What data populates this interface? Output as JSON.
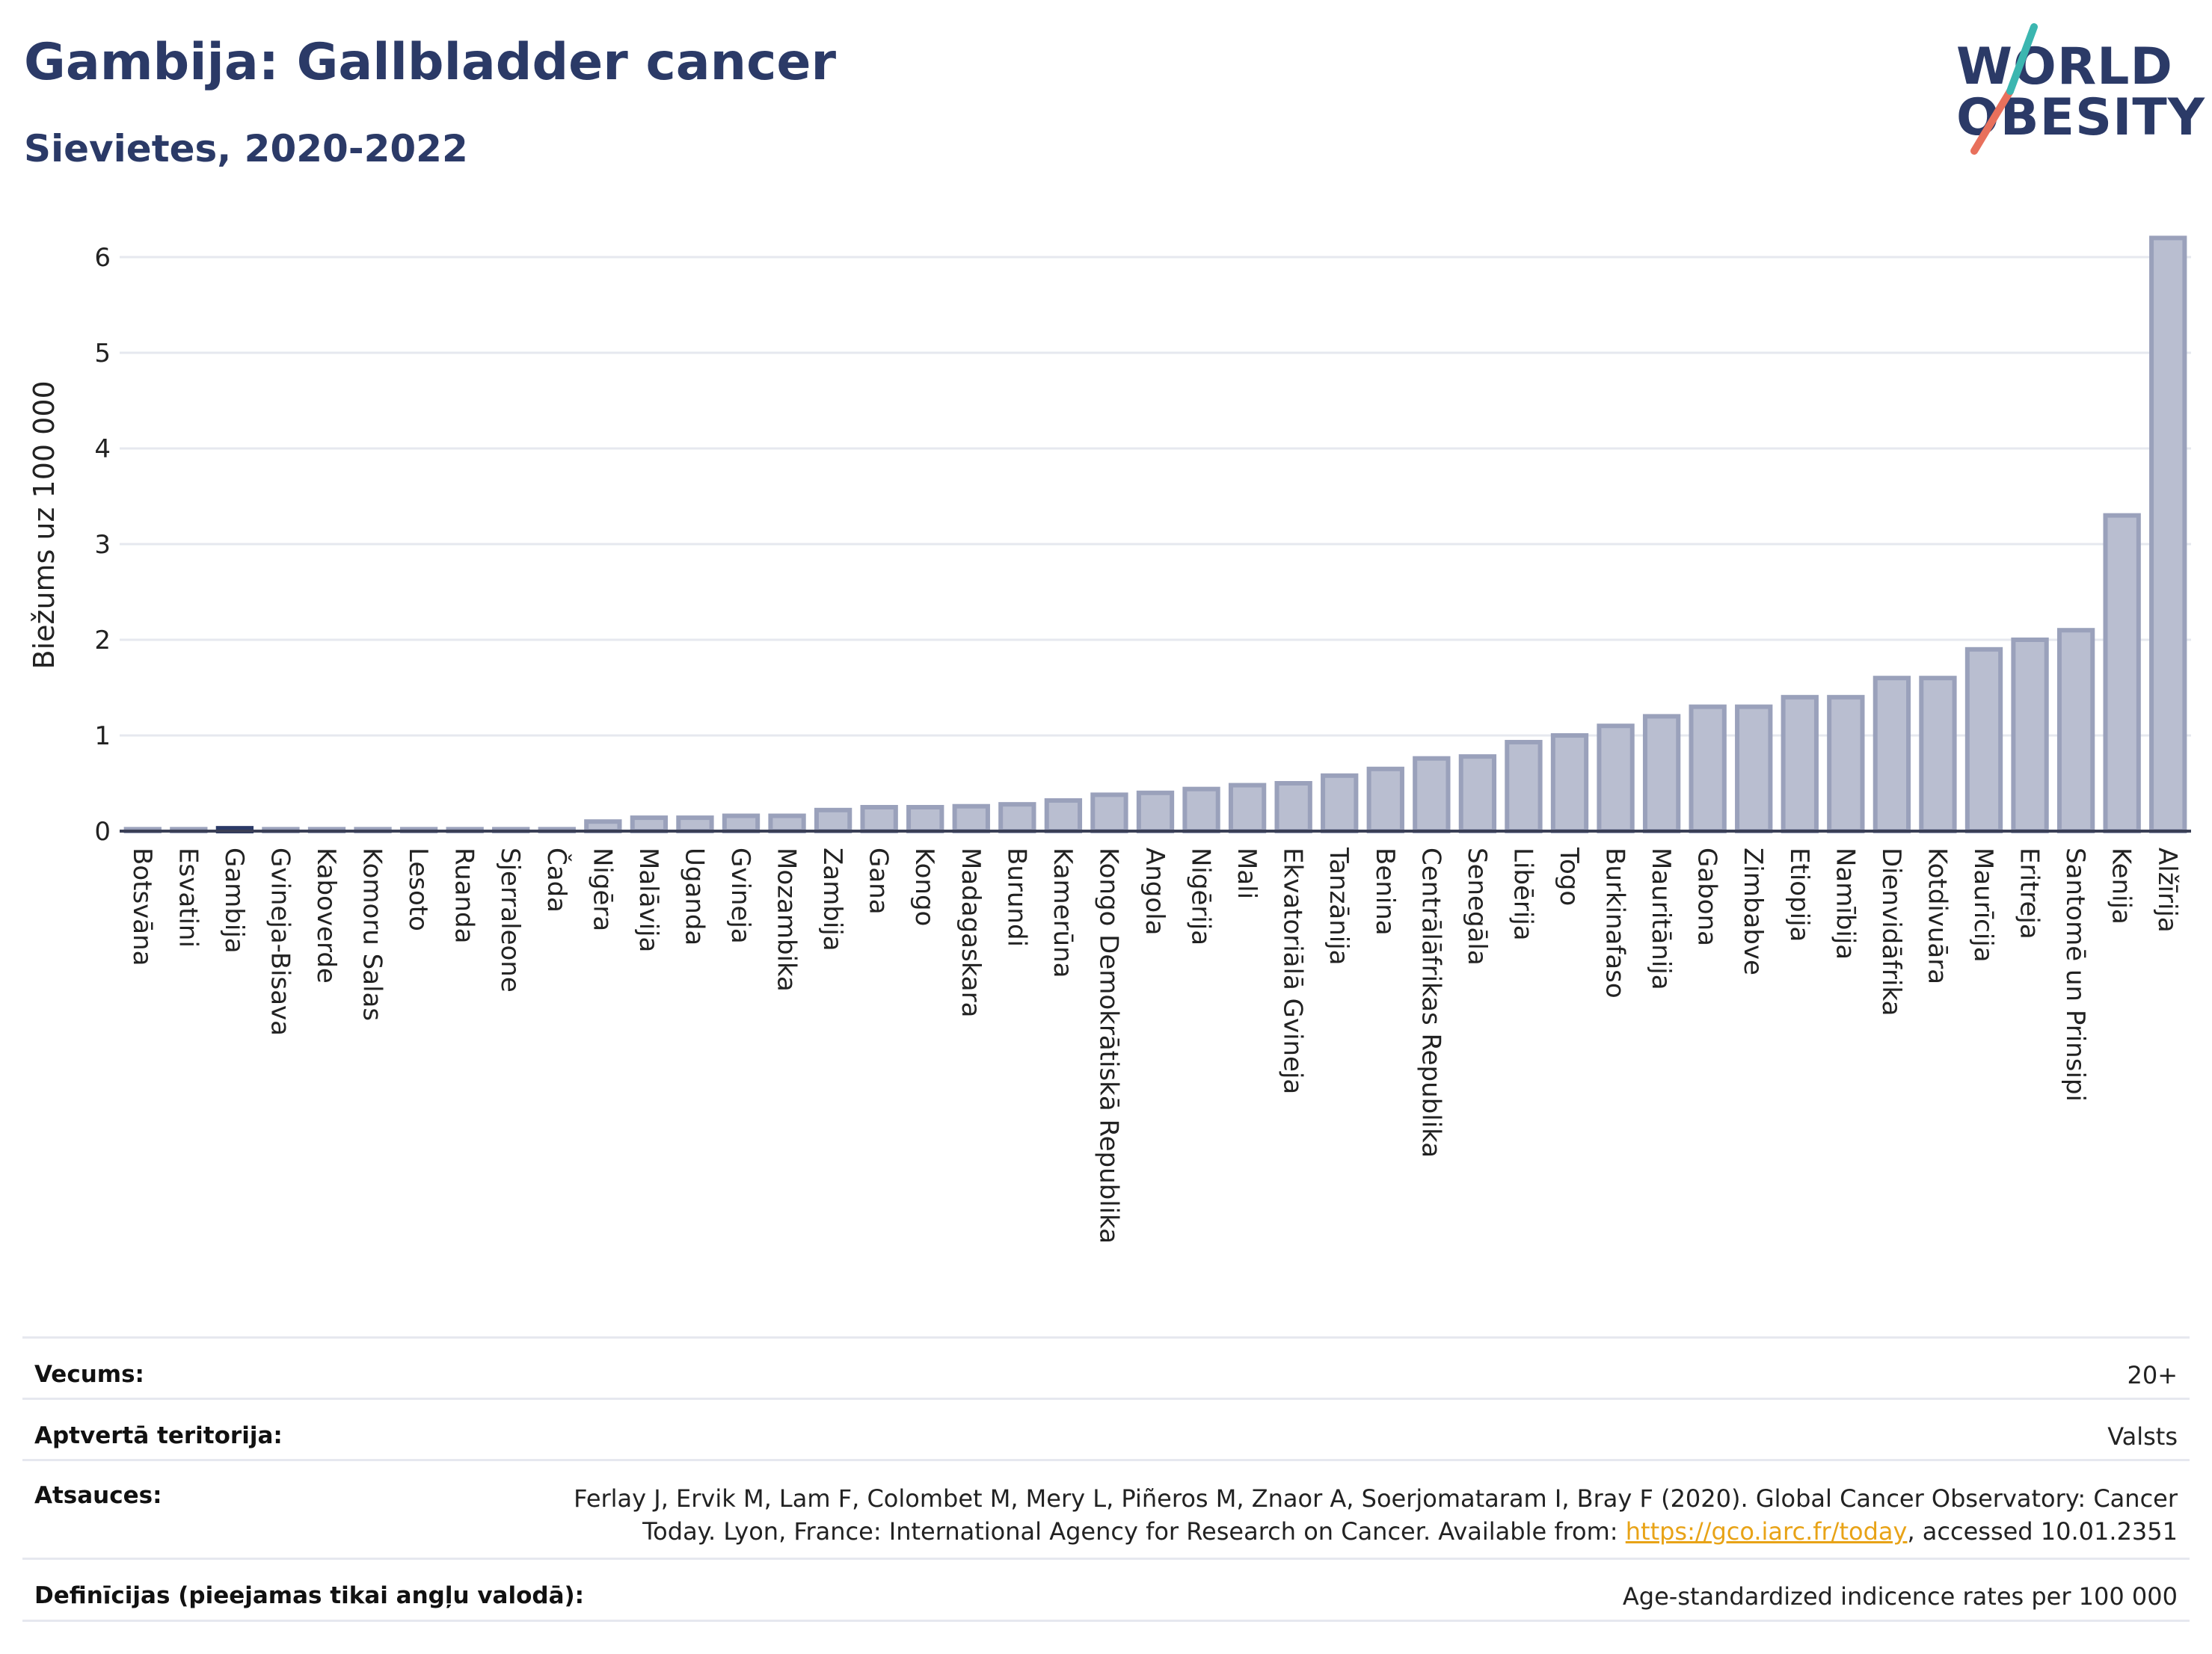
{
  "title": "Gambija: Gallbladder cancer",
  "subtitle": "Sievietes, 2020-2022",
  "logo": {
    "line1": "WORLD",
    "line2": "OBESITY"
  },
  "colors": {
    "bar_fill": "#b9bed0",
    "bar_stroke": "#9aa1bb",
    "highlight": "#2b3a67",
    "title": "#2b3a67",
    "grid": "#e6e8ef"
  },
  "chart_data": {
    "type": "bar",
    "ylabel": "Biežums uz 100 000",
    "ylim": [
      0,
      6.5
    ],
    "yticks": [
      "0",
      "1",
      "2",
      "3",
      "4",
      "5",
      "6"
    ],
    "highlight_category": "Gambija",
    "categories": [
      "Botsvāna",
      "Esvatini",
      "Gambija",
      "Gvineja-Bisava",
      "Kaboverde",
      "Komoru Salas",
      "Lesoto",
      "Ruanda",
      "Sjerraleone",
      "Čada",
      "Nigēra",
      "Malāvija",
      "Uganda",
      "Gvineja",
      "Mozambika",
      "Zambija",
      "Gana",
      "Kongo",
      "Madagaskara",
      "Burundi",
      "Kamerūna",
      "Kongo Demokrātiskā Republika",
      "Angola",
      "Nigērija",
      "Mali",
      "Ekvatoriālā Gvineja",
      "Tanzānija",
      "Benina",
      "Centrālāfrikas Republika",
      "Senegāla",
      "Libērija",
      "Togo",
      "Burkinafaso",
      "Mauritānija",
      "Gabona",
      "Zimbabve",
      "Etiopija",
      "Namībija",
      "Dienvidāfrika",
      "Kotdivuāra",
      "Maurīcija",
      "Eritreja",
      "Santomē un Prinsipi",
      "Kenija",
      "Alžīrija"
    ],
    "values": [
      0.02,
      0.02,
      0.03,
      0.02,
      0.02,
      0.02,
      0.02,
      0.02,
      0.02,
      0.02,
      0.1,
      0.14,
      0.14,
      0.16,
      0.16,
      0.22,
      0.25,
      0.25,
      0.26,
      0.28,
      0.32,
      0.38,
      0.4,
      0.44,
      0.48,
      0.5,
      0.58,
      0.65,
      0.76,
      0.78,
      0.93,
      1.0,
      1.1,
      1.2,
      1.3,
      1.3,
      1.4,
      1.4,
      1.6,
      1.6,
      1.9,
      2.0,
      2.1,
      3.3,
      6.2
    ]
  },
  "footer": {
    "rows": [
      {
        "label": "Vecums:",
        "value_lines": [
          "20+"
        ]
      },
      {
        "label": "Aptvertā teritorija:",
        "value_lines": [
          "Valsts"
        ]
      },
      {
        "label": "Atsauces:",
        "value_lines": [
          "Ferlay J, Ervik M, Lam F, Colombet M, Mery L, Piñeros M, Znaor A, Soerjomataram I, Bray F (2020). Global Cancer Observatory: Cancer"
        ],
        "line2_before": "Today. Lyon, France: International Agency for Research on Cancer. Available from: ",
        "line2_link": "https://gco.iarc.fr/today",
        "line2_after": ", accessed 10.01.2351"
      },
      {
        "label": "Definīcijas (pieejamas tikai angļu valodā):",
        "value_lines": [
          "Age-standardized indicence rates per 100 000"
        ]
      }
    ]
  }
}
